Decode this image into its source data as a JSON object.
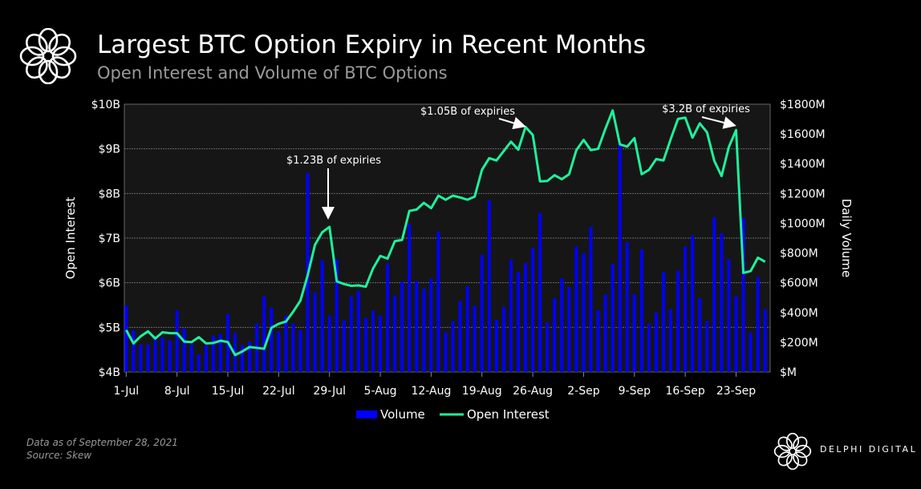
{
  "header": {
    "title": "Largest BTC Option Expiry in Recent Months",
    "subtitle": "Open Interest and Volume of BTC Options"
  },
  "footer": {
    "note": "Data as of September 28, 2021",
    "source": "Source:  Skew",
    "brand": "DELPHI DIGITAL"
  },
  "colors": {
    "volume": "#0000ff",
    "open_interest": "#1ef29b",
    "plot_bg": "#161616"
  },
  "chart_data": {
    "type": "bar+line",
    "title": "Largest BTC Option Expiry in Recent Months",
    "subtitle": "Open Interest and Volume of BTC Options",
    "start_date": "2021-07-01",
    "x_tick_labels": [
      "1-Jul",
      "8-Jul",
      "15-Jul",
      "22-Jul",
      "29-Jul",
      "5-Aug",
      "12-Aug",
      "19-Aug",
      "26-Aug",
      "2-Sep",
      "9-Sep",
      "16-Sep",
      "23-Sep"
    ],
    "ylabel_left": "Open Interest",
    "ylabel_right": "Daily Volume",
    "ylim_left": [
      4,
      10
    ],
    "ylim_right": [
      0,
      1800
    ],
    "y_left_tick_labels": [
      "$4B",
      "$5B",
      "$6B",
      "$7B",
      "$8B",
      "$9B",
      "$10B"
    ],
    "y_right_tick_labels": [
      "$M",
      "$200M",
      "$400M",
      "$600M",
      "$800M",
      "$1000M",
      "$1200M",
      "$1400M",
      "$1600M",
      "$1800M"
    ],
    "grid": true,
    "legend": "bottom",
    "series": [
      {
        "name": "Volume",
        "type": "bar",
        "axis": "right",
        "unit": "$M",
        "values": [
          447,
          280,
          185,
          185,
          230,
          233,
          212,
          416,
          291,
          185,
          120,
          180,
          244,
          255,
          390,
          262,
          180,
          206,
          325,
          508,
          433,
          271,
          379,
          325,
          282,
          1337,
          535,
          750,
          379,
          757,
          346,
          510,
          546,
          364,
          413,
          379,
          729,
          515,
          607,
          993,
          610,
          558,
          626,
          944,
          266,
          341,
          476,
          576,
          447,
          788,
          1154,
          350,
          436,
          755,
          673,
          734,
          835,
          1068,
          334,
          497,
          630,
          573,
          842,
          799,
          975,
          416,
          522,
          727,
          1531,
          874,
          522,
          824,
          325,
          400,
          673,
          422,
          680,
          845,
          917,
          497,
          341,
          1039,
          932,
          759,
          508,
          1036,
          266,
          637,
          422
        ]
      },
      {
        "name": "Open Interest",
        "type": "line",
        "axis": "left",
        "unit": "$B",
        "values": [
          4.94,
          4.64,
          4.8,
          4.91,
          4.75,
          4.89,
          4.87,
          4.87,
          4.68,
          4.67,
          4.78,
          4.64,
          4.65,
          4.7,
          4.67,
          4.38,
          4.46,
          4.56,
          4.54,
          4.52,
          4.99,
          5.08,
          5.13,
          5.35,
          5.6,
          6.17,
          6.85,
          7.13,
          7.25,
          6.03,
          5.97,
          5.93,
          5.94,
          5.91,
          6.32,
          6.6,
          6.54,
          6.93,
          6.96,
          7.61,
          7.64,
          7.79,
          7.67,
          7.95,
          7.86,
          7.95,
          7.91,
          7.86,
          7.93,
          8.53,
          8.79,
          8.74,
          8.95,
          9.16,
          8.98,
          9.49,
          9.31,
          8.27,
          8.28,
          8.41,
          8.32,
          8.43,
          8.97,
          9.2,
          8.97,
          9.0,
          9.45,
          9.86,
          9.1,
          9.05,
          9.24,
          8.43,
          8.53,
          8.77,
          8.74,
          9.22,
          9.67,
          9.7,
          9.25,
          9.57,
          9.37,
          8.73,
          8.39,
          9.04,
          9.42,
          6.22,
          6.26,
          6.56,
          6.47
        ]
      }
    ],
    "annotations": [
      {
        "text": "$1.23B of expiries",
        "date_index": 29
      },
      {
        "text": "$1.05B of expiries",
        "date_index": 56
      },
      {
        "text": "$3.2B of expiries",
        "date_index": 85
      }
    ]
  }
}
